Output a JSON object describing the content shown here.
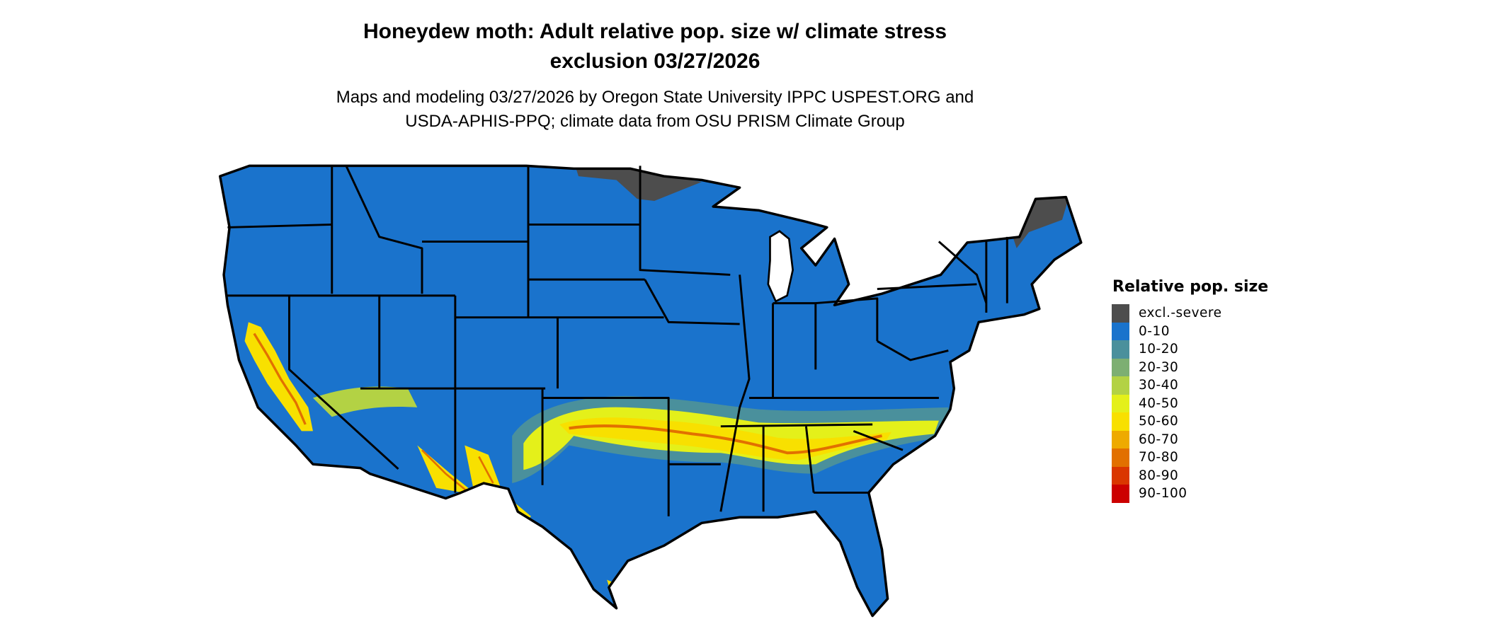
{
  "title": {
    "line1": "Honeydew moth: Adult relative pop. size w/ climate stress",
    "line2": "exclusion 03/27/2026"
  },
  "subtitle": {
    "line1": "Maps and modeling 03/27/2026 by Oregon State University IPPC USPEST.ORG and",
    "line2": "USDA-APHIS-PPQ; climate data from OSU PRISM Climate Group"
  },
  "legend": {
    "title": "Relative pop. size",
    "items": [
      {
        "label": "excl.-severe",
        "color": "#4d4d4d"
      },
      {
        "label": "0-10",
        "color": "#1a73cc"
      },
      {
        "label": "10-20",
        "color": "#4a909c"
      },
      {
        "label": "20-30",
        "color": "#7daf72"
      },
      {
        "label": "30-40",
        "color": "#b3d244"
      },
      {
        "label": "40-50",
        "color": "#e4f01a"
      },
      {
        "label": "50-60",
        "color": "#f8e000"
      },
      {
        "label": "60-70",
        "color": "#eeaa00"
      },
      {
        "label": "70-80",
        "color": "#e27000"
      },
      {
        "label": "80-90",
        "color": "#da3600"
      },
      {
        "label": "90-100",
        "color": "#cc0000"
      }
    ]
  },
  "map": {
    "region": "Contiguous United States",
    "boundary_color": "#000000"
  }
}
